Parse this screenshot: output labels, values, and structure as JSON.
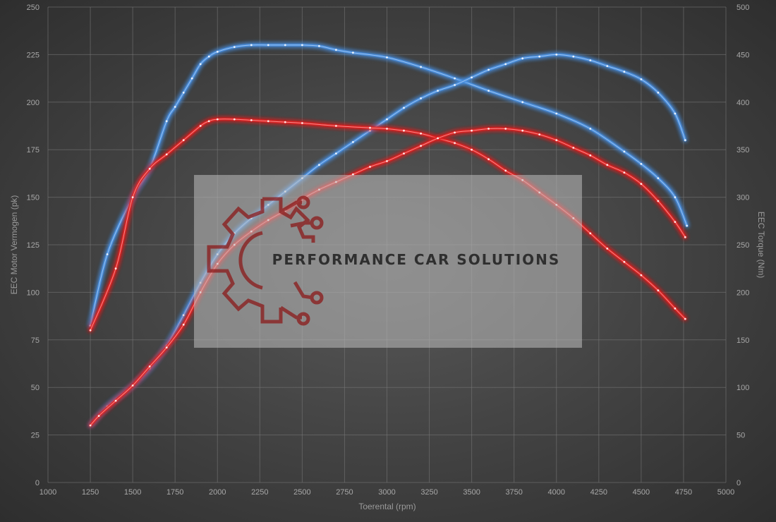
{
  "chart_data": {
    "type": "line",
    "title": "",
    "xlabel": "Toerental (rpm)",
    "ylabel_left": "EEC Motor Vermogen (pk)",
    "ylabel_right": "EEC Torque (Nm)",
    "xlim": [
      1000,
      5000
    ],
    "ylim_left": [
      0,
      250
    ],
    "ylim_right": [
      0,
      500
    ],
    "x_ticks": [
      1000,
      1250,
      1500,
      1750,
      2000,
      2250,
      2500,
      2750,
      3000,
      3250,
      3500,
      3750,
      4000,
      4250,
      4500,
      4750,
      5000
    ],
    "y_ticks_left": [
      0,
      25,
      50,
      75,
      100,
      125,
      150,
      175,
      200,
      225,
      250
    ],
    "y_ticks_right": [
      0,
      50,
      100,
      150,
      200,
      250,
      300,
      350,
      400,
      450,
      500
    ],
    "grid": true,
    "series": [
      {
        "axis": "right",
        "color": "#4a90e2",
        "x": [
          1250,
          1350,
          1500,
          1600,
          1700,
          1750,
          1800,
          1850,
          1900,
          1950,
          2000,
          2100,
          2200,
          2300,
          2400,
          2500,
          2600,
          2700,
          2800,
          3000,
          3200,
          3400,
          3600,
          3800,
          4000,
          4200,
          4400,
          4500,
          4600,
          4700,
          4770
        ],
        "values": [
          165,
          240,
          300,
          330,
          380,
          395,
          410,
          425,
          440,
          448,
          453,
          458,
          460,
          460,
          460,
          460,
          459,
          455,
          452,
          447,
          437,
          425,
          412,
          400,
          388,
          372,
          348,
          335,
          320,
          300,
          270
        ]
      },
      {
        "axis": "left",
        "color": "#4a90e2",
        "x": [
          1250,
          1350,
          1500,
          1600,
          1700,
          1800,
          1900,
          2000,
          2100,
          2200,
          2300,
          2400,
          2500,
          2600,
          2700,
          2800,
          2900,
          3000,
          3100,
          3200,
          3300,
          3400,
          3500,
          3600,
          3700,
          3800,
          3900,
          4000,
          4100,
          4200,
          4300,
          4400,
          4500,
          4600,
          4700,
          4760
        ],
        "values": [
          30,
          40,
          51,
          60,
          72,
          88,
          105,
          120,
          131,
          139,
          146,
          153,
          160,
          167,
          173,
          179,
          185,
          191,
          197,
          202,
          206,
          209,
          213,
          217,
          220,
          223,
          224,
          225,
          224,
          222,
          219,
          216,
          212,
          205,
          194,
          180
        ]
      },
      {
        "axis": "right",
        "color": "#e02020",
        "x": [
          1250,
          1400,
          1500,
          1600,
          1700,
          1800,
          1900,
          1950,
          2000,
          2100,
          2200,
          2300,
          2400,
          2500,
          2700,
          2900,
          3000,
          3100,
          3200,
          3300,
          3400,
          3500,
          3600,
          3700,
          3800,
          3900,
          4000,
          4100,
          4200,
          4300,
          4400,
          4500,
          4600,
          4700,
          4760
        ],
        "values": [
          160,
          225,
          300,
          330,
          345,
          360,
          375,
          380,
          382,
          382,
          381,
          380,
          379,
          378,
          375,
          373,
          372,
          370,
          367,
          362,
          357,
          350,
          340,
          328,
          318,
          305,
          292,
          278,
          262,
          246,
          232,
          218,
          202,
          183,
          172
        ]
      },
      {
        "axis": "left",
        "color": "#e02020",
        "x": [
          1250,
          1300,
          1400,
          1500,
          1600,
          1700,
          1800,
          1900,
          2000,
          2100,
          2200,
          2300,
          2400,
          2500,
          2600,
          2700,
          2800,
          2900,
          3000,
          3100,
          3200,
          3300,
          3400,
          3500,
          3600,
          3700,
          3800,
          3900,
          4000,
          4100,
          4200,
          4300,
          4400,
          4500,
          4600,
          4700,
          4760
        ],
        "values": [
          30,
          35,
          43,
          51,
          61,
          71,
          83,
          100,
          115,
          125,
          132,
          138,
          143,
          149,
          154,
          158,
          162,
          166,
          169,
          173,
          177,
          181,
          184,
          185,
          186,
          186,
          185,
          183,
          180,
          176,
          172,
          167,
          163,
          157,
          148,
          137,
          129
        ]
      }
    ]
  },
  "watermark": {
    "text": "PERFORMANCE CAR SOLUTIONS",
    "logo_icon": "gear-circuit-icon",
    "logo_color": "#8b1a1a"
  }
}
